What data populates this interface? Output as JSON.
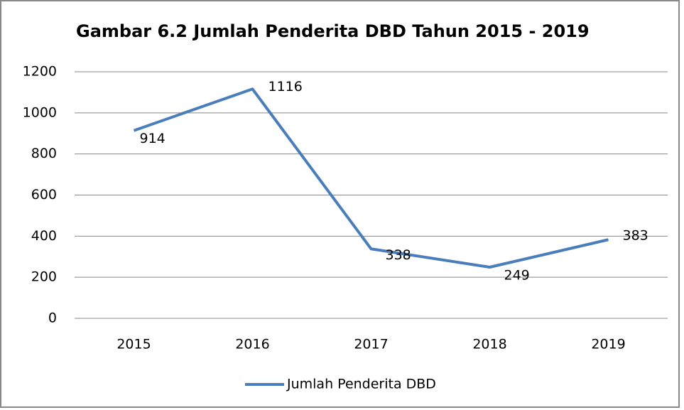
{
  "chart_data": {
    "type": "line",
    "title": "Gambar 6.2 Jumlah Penderita DBD Tahun 2015 - 2019",
    "categories": [
      "2015",
      "2016",
      "2017",
      "2018",
      "2019"
    ],
    "series": [
      {
        "name": "Jumlah Penderita DBD",
        "color": "#4a7ebb",
        "values": [
          914,
          1116,
          338,
          249,
          383
        ]
      }
    ],
    "ylim": [
      0,
      1200
    ],
    "yticks": [
      0,
      200,
      400,
      600,
      800,
      1000,
      1200
    ],
    "grid": true,
    "data_labels": true,
    "legend": "bottom"
  }
}
